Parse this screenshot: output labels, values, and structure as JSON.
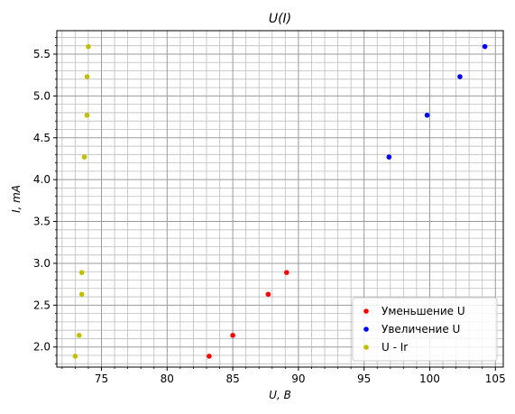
{
  "chart_data": {
    "type": "scatter",
    "title": "U(I)",
    "xlabel": "U, B",
    "ylabel": "I, mA",
    "xlim": [
      71.6,
      105.6
    ],
    "ylim": [
      1.76,
      5.78
    ],
    "x_ticks": [
      75,
      80,
      85,
      90,
      95,
      100,
      105
    ],
    "y_ticks": [
      2.0,
      2.5,
      3.0,
      3.5,
      4.0,
      4.5,
      5.0,
      5.5
    ],
    "x_tick_labels": [
      "75",
      "80",
      "85",
      "90",
      "95",
      "100",
      "105"
    ],
    "y_tick_labels": [
      "2.0",
      "2.5",
      "3.0",
      "3.5",
      "4.0",
      "4.5",
      "5.0",
      "5.5"
    ],
    "grid": true,
    "minor_grid": true,
    "legend_position": "bottom-right",
    "series": [
      {
        "name": "Уменьшение U",
        "color": "#ff0000",
        "points": [
          [
            83.2,
            1.89
          ],
          [
            85.0,
            2.14
          ],
          [
            87.7,
            2.63
          ],
          [
            89.1,
            2.89
          ]
        ]
      },
      {
        "name": "Увеличение U",
        "color": "#0000ff",
        "points": [
          [
            96.9,
            4.27
          ],
          [
            99.8,
            4.77
          ],
          [
            102.3,
            5.23
          ],
          [
            104.2,
            5.59
          ]
        ]
      },
      {
        "name": "U - Ir",
        "color": "#bfbf00",
        "points": [
          [
            73.0,
            1.89
          ],
          [
            73.3,
            2.14
          ],
          [
            73.5,
            2.63
          ],
          [
            73.5,
            2.89
          ],
          [
            73.7,
            4.27
          ],
          [
            73.9,
            4.77
          ],
          [
            73.9,
            5.23
          ],
          [
            74.0,
            5.59
          ]
        ]
      }
    ]
  }
}
